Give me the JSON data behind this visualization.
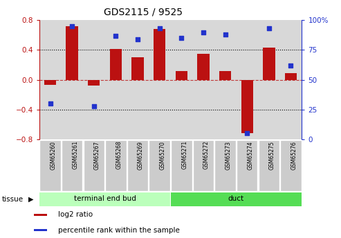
{
  "title": "GDS2115 / 9525",
  "samples": [
    "GSM65260",
    "GSM65261",
    "GSM65267",
    "GSM65268",
    "GSM65269",
    "GSM65270",
    "GSM65271",
    "GSM65272",
    "GSM65273",
    "GSM65274",
    "GSM65275",
    "GSM65276"
  ],
  "log2_ratio": [
    -0.07,
    0.72,
    -0.08,
    0.41,
    0.3,
    0.68,
    0.12,
    0.35,
    0.12,
    -0.72,
    0.43,
    0.09
  ],
  "percentile_rank": [
    30,
    95,
    28,
    87,
    84,
    93,
    85,
    90,
    88,
    5,
    93,
    62
  ],
  "bar_color": "#bb1111",
  "dot_color": "#2233cc",
  "left_ylim": [
    -0.8,
    0.8
  ],
  "right_ylim": [
    0,
    100
  ],
  "left_yticks": [
    -0.8,
    -0.4,
    0.0,
    0.4,
    0.8
  ],
  "right_yticks": [
    0,
    25,
    50,
    75,
    100
  ],
  "right_yticklabels": [
    "0",
    "25",
    "50",
    "75",
    "100%"
  ],
  "hline_dotted": [
    -0.4,
    0.4
  ],
  "hline_dashed": [
    0.0
  ],
  "tissue_groups": [
    {
      "label": "terminal end bud",
      "start": 0,
      "end": 6,
      "color": "#bbffbb"
    },
    {
      "label": "duct",
      "start": 6,
      "end": 12,
      "color": "#55dd55"
    }
  ],
  "tissue_label": "tissue",
  "legend_items": [
    {
      "label": "log2 ratio",
      "color": "#bb1111"
    },
    {
      "label": "percentile rank within the sample",
      "color": "#2233cc"
    }
  ],
  "plot_bg_color": "#d8d8d8",
  "sample_box_color": "#cccccc",
  "bar_width": 0.55,
  "dot_size": 22
}
